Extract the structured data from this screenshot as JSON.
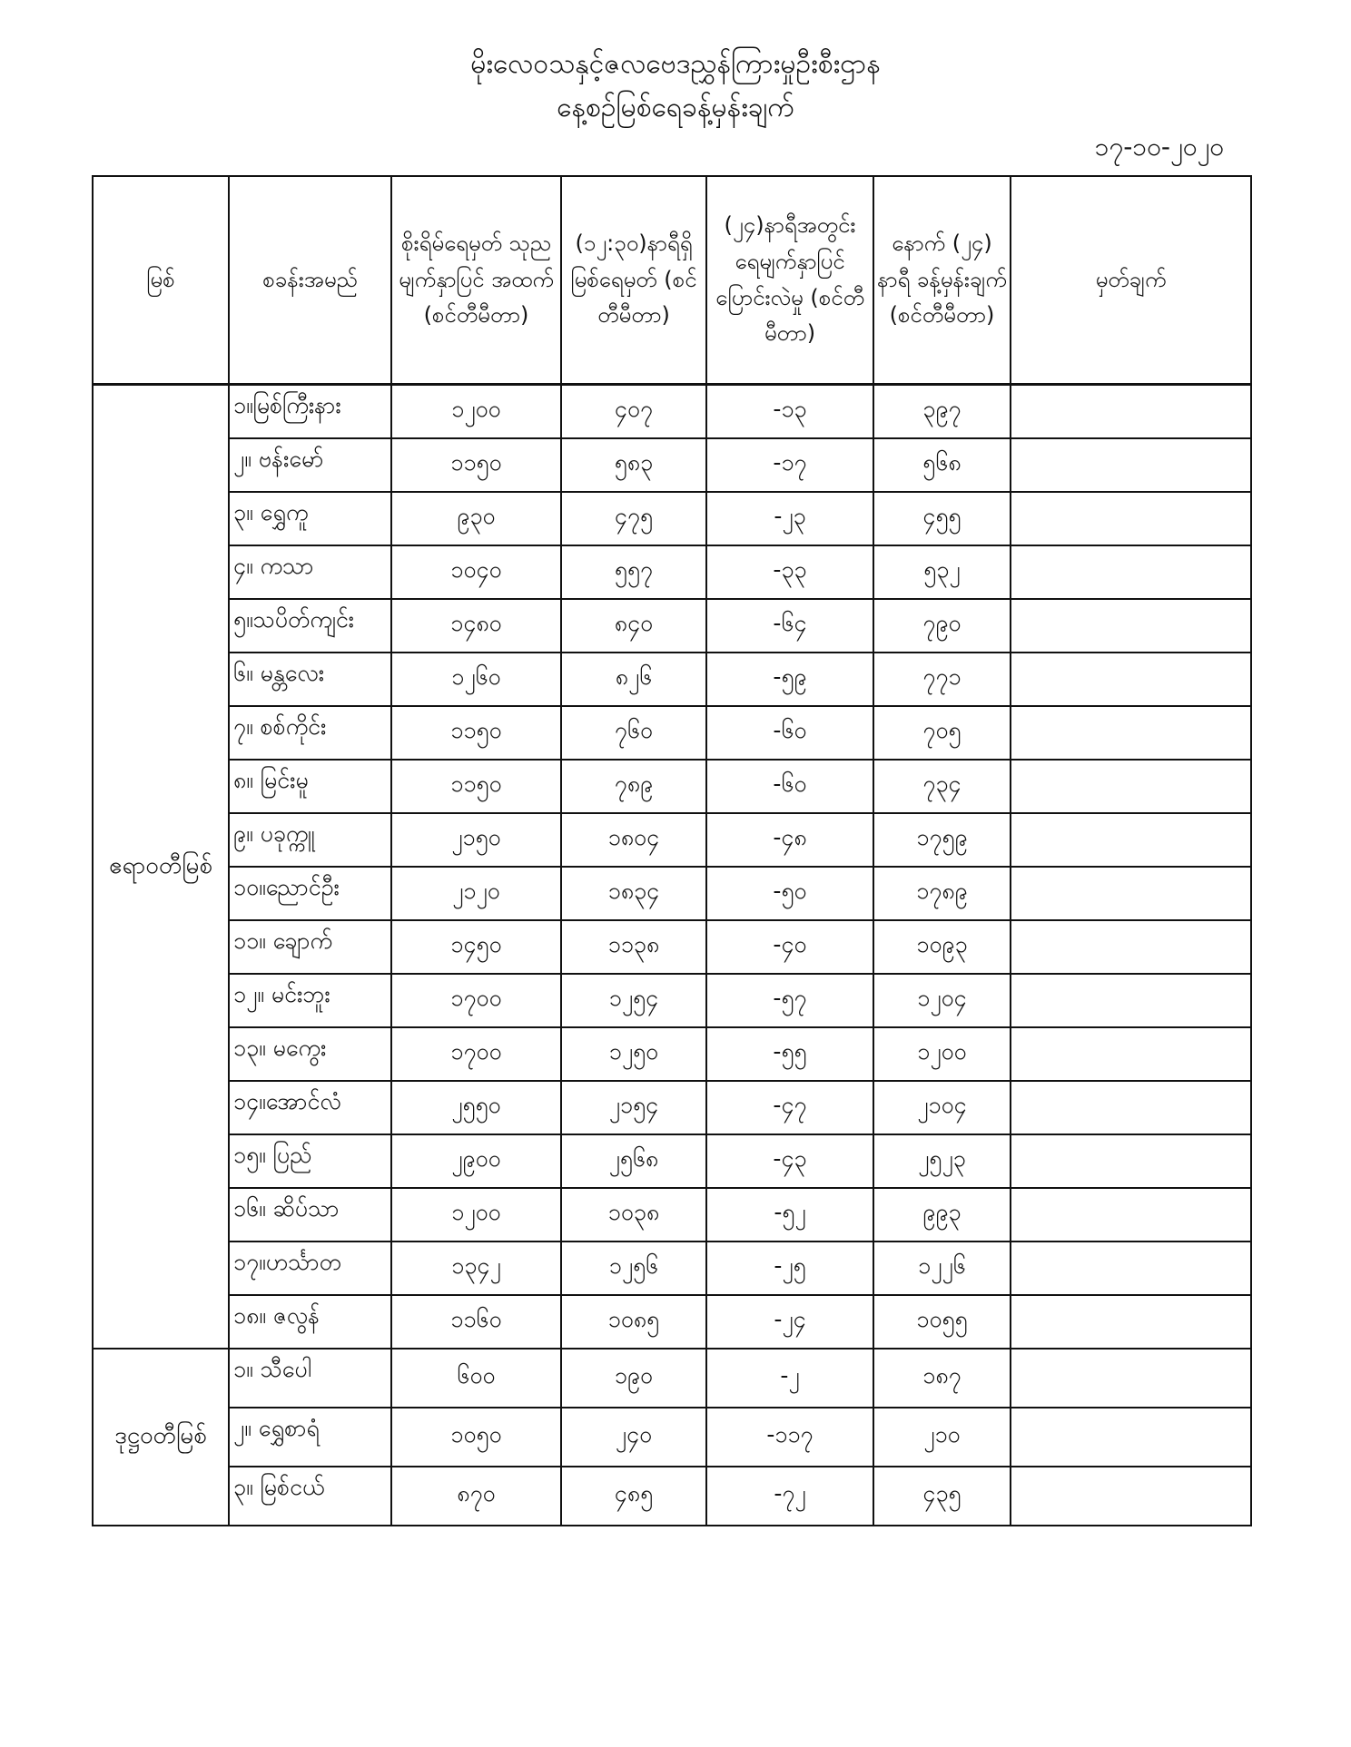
{
  "header": {
    "title": "မိုးလေဝသနှင့်ဇလဗေဒညွှန်ကြားမှုဦးစီးဌာန",
    "subtitle": "နေ့စဉ်မြစ်ရေခန့်မှန်းချက်",
    "date": "၁၇-၁၀-၂၀၂၀"
  },
  "table": {
    "columns": [
      "မြစ်",
      "စခန်းအမည်",
      "စိုးရိမ်ရေမှတ် သုညမျက်နှာပြင် အထက် (စင်တီမီတာ)",
      "(၁၂:၃၀)နာရီရှိ မြစ်ရေမှတ် (စင်တီမီတာ)",
      "(၂၄)နာရီအတွင်း ရေမျက်နှာပြင် ပြောင်းလဲမှု (စင်တီမီတာ)",
      "နောက် (၂၄) နာရီ ခန့်မှန်းချက် (စင်တီမီတာ)",
      "မှတ်ချက်"
    ],
    "groups": [
      {
        "river": "ဧရာဝတီမြစ်",
        "rows": [
          [
            "၁။မြစ်ကြီးနား",
            "၁၂၀၀",
            "၄၀၇",
            "-၁၃",
            "၃၉၇",
            ""
          ],
          [
            "၂။ ဗန်းမော်",
            "၁၁၅၀",
            "၅၈၃",
            "-၁၇",
            "၅၆၈",
            ""
          ],
          [
            "၃။ ရွှေကူ",
            "၉၃၀",
            "၄၇၅",
            "-၂၃",
            "၄၅၅",
            ""
          ],
          [
            "၄။ ကသာ",
            "၁၀၄၀",
            "၅၅၇",
            "-၃၃",
            "၅၃၂",
            ""
          ],
          [
            "၅။သပိတ်ကျင်း",
            "၁၄၈၀",
            "၈၄၀",
            "-၆၄",
            "၇၉၀",
            ""
          ],
          [
            "၆။ မန္တလေး",
            "၁၂၆၀",
            "၈၂၆",
            "-၅၉",
            "၇၇၁",
            ""
          ],
          [
            "၇။ စစ်ကိုင်း",
            "၁၁၅၀",
            "၇၆၀",
            "-၆၀",
            "၇၀၅",
            ""
          ],
          [
            "၈။ မြင်းမူ",
            "၁၁၅၀",
            "၇၈၉",
            "-၆၀",
            "၇၃၄",
            ""
          ],
          [
            "၉။ ပခုက္ကူ",
            "၂၁၅၀",
            "၁၈၀၄",
            "-၄၈",
            "၁၇၅၉",
            ""
          ],
          [
            "၁၀။ညောင်ဦး",
            "၂၁၂၀",
            "၁၈၃၄",
            "-၅၀",
            "၁၇၈၉",
            ""
          ],
          [
            "၁၁။ ချောက်",
            "၁၄၅၀",
            "၁၁၃၈",
            "-၄၀",
            "၁၀၉၃",
            ""
          ],
          [
            "၁၂။ မင်းဘူး",
            "၁၇၀၀",
            "၁၂၅၄",
            "-၅၇",
            "၁၂၀၄",
            ""
          ],
          [
            "၁၃။ မကွေး",
            "၁၇၀၀",
            "၁၂၅၀",
            "-၅၅",
            "၁၂၀၀",
            ""
          ],
          [
            "၁၄။အောင်လံ",
            "၂၅၅၀",
            "၂၁၅၄",
            "-၄၇",
            "၂၁၀၄",
            ""
          ],
          [
            "၁၅။ ပြည်",
            "၂၉၀၀",
            "၂၅၆၈",
            "-၄၃",
            "၂၅၂၃",
            ""
          ],
          [
            "၁၆။ ဆိပ်သာ",
            "၁၂၀၀",
            "၁၀၃၈",
            "-၅၂",
            "၉၉၃",
            ""
          ],
          [
            "၁၇။ဟင်္သာတ",
            "၁၃၄၂",
            "၁၂၅၆",
            "-၂၅",
            "၁၂၂၆",
            ""
          ],
          [
            "၁၈။ ဇလွန်",
            "၁၁၆၀",
            "၁၀၈၅",
            "-၂၄",
            "၁၀၅၅",
            ""
          ]
        ]
      },
      {
        "river": "ဒုဋ္ဌဝတီမြစ်",
        "rows": [
          [
            "၁။ သီပေါ",
            "၆၀၀",
            "၁၉၀",
            "-၂",
            "၁၈၇",
            ""
          ],
          [
            "၂။ ရွှေစာရံ",
            "၁၀၅၀",
            "၂၄၀",
            "-၁၁၇",
            "၂၁၀",
            ""
          ],
          [
            "၃။ မြစ်ငယ်",
            "၈၇၀",
            "၄၈၅",
            "-၇၂",
            "၄၃၅",
            ""
          ]
        ]
      }
    ]
  }
}
